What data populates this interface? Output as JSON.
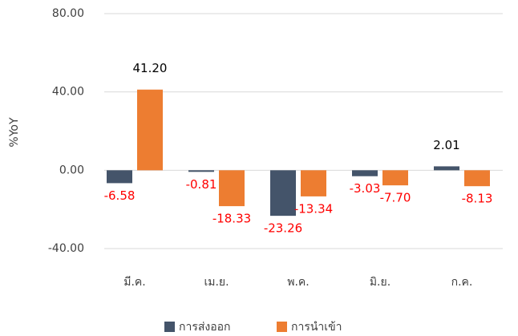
{
  "chart_data": {
    "type": "bar",
    "ylabel": "%YoY",
    "categories": [
      "มี.ค.",
      "เม.ย.",
      "พ.ค.",
      "มิ.ย.",
      "ก.ค."
    ],
    "series": [
      {
        "name": "การส่งออก",
        "color": "#44546a",
        "values": [
          -6.58,
          -0.81,
          -23.26,
          -3.03,
          2.01
        ],
        "value_labels": [
          "-6.58",
          "-0.81",
          "-23.26",
          "-3.03",
          "2.01"
        ]
      },
      {
        "name": "การนำเข้า",
        "color": "#ed7d31",
        "values": [
          41.2,
          -18.33,
          -13.34,
          -7.7,
          -8.13
        ],
        "value_labels": [
          "41.20",
          "-18.33",
          "-13.34",
          "-7.70",
          "-8.13"
        ]
      }
    ],
    "ylim": [
      -40,
      80
    ],
    "yticks": [
      {
        "value": -40,
        "label": "-40.00"
      },
      {
        "value": 0,
        "label": "0.00"
      },
      {
        "value": 40,
        "label": "40.00"
      },
      {
        "value": 80,
        "label": "80.00"
      }
    ],
    "grid": true,
    "legend": "bottom"
  }
}
